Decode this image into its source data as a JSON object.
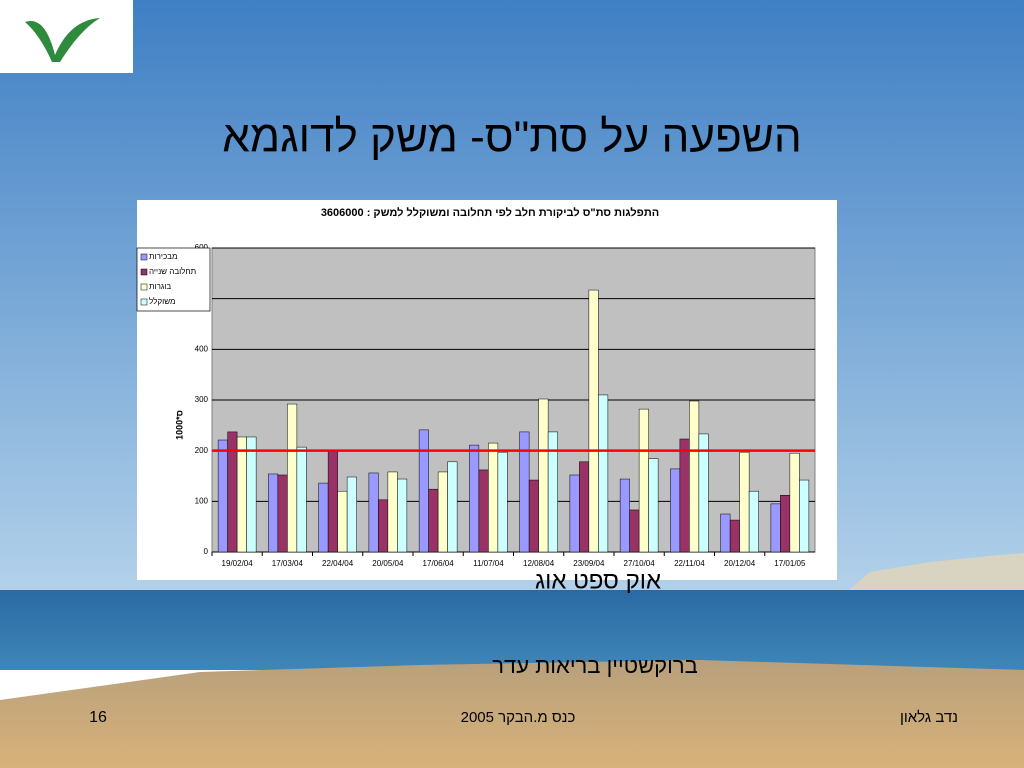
{
  "slide": {
    "title": "השפעה על סת\"ס- משק לדוגמא",
    "overlay_months": "אוק  ספט  אוג",
    "subtitle": "ברוקשטיין בריאות עדר",
    "page_number": "16",
    "footer_center": "כנס מ.הבקר 2005",
    "footer_right": "נדב גלאון"
  },
  "chart_data": {
    "type": "bar",
    "title": "התפלגות סת\"ס לביקורת חלב לפי תחלובה ומשוקלל למשק : 3606000",
    "y_label": "1000*ס",
    "categories": [
      "19/02/04",
      "17/03/04",
      "22/04/04",
      "20/05/04",
      "17/06/04",
      "11/07/04",
      "12/08/04",
      "23/09/04",
      "27/10/04",
      "22/11/04",
      "20/12/04",
      "17/01/05"
    ],
    "series": [
      {
        "name": "מבכירות",
        "color": "#9999ff",
        "values": [
          221,
          154,
          136,
          156,
          241,
          211,
          237,
          152,
          144,
          164,
          75,
          95
        ]
      },
      {
        "name": "תחלובה שנייה",
        "color": "#993366",
        "values": [
          237,
          152,
          201,
          103,
          124,
          162,
          142,
          178,
          83,
          223,
          63,
          112
        ]
      },
      {
        "name": "בוגרות",
        "color": "#ffffcc",
        "values": [
          227,
          292,
          120,
          158,
          158,
          215,
          302,
          517,
          282,
          298,
          197,
          195
        ]
      },
      {
        "name": "משוקלל",
        "color": "#ccffff",
        "values": [
          227,
          207,
          148,
          144,
          178,
          197,
          237,
          310,
          184,
          233,
          120,
          142
        ]
      }
    ],
    "ylim": [
      0,
      600
    ],
    "yticks": [
      0,
      100,
      200,
      300,
      400,
      500,
      600
    ],
    "grid": true,
    "legend": "upper-left",
    "reference_line": {
      "value": 200,
      "color": "#ff0000"
    }
  }
}
